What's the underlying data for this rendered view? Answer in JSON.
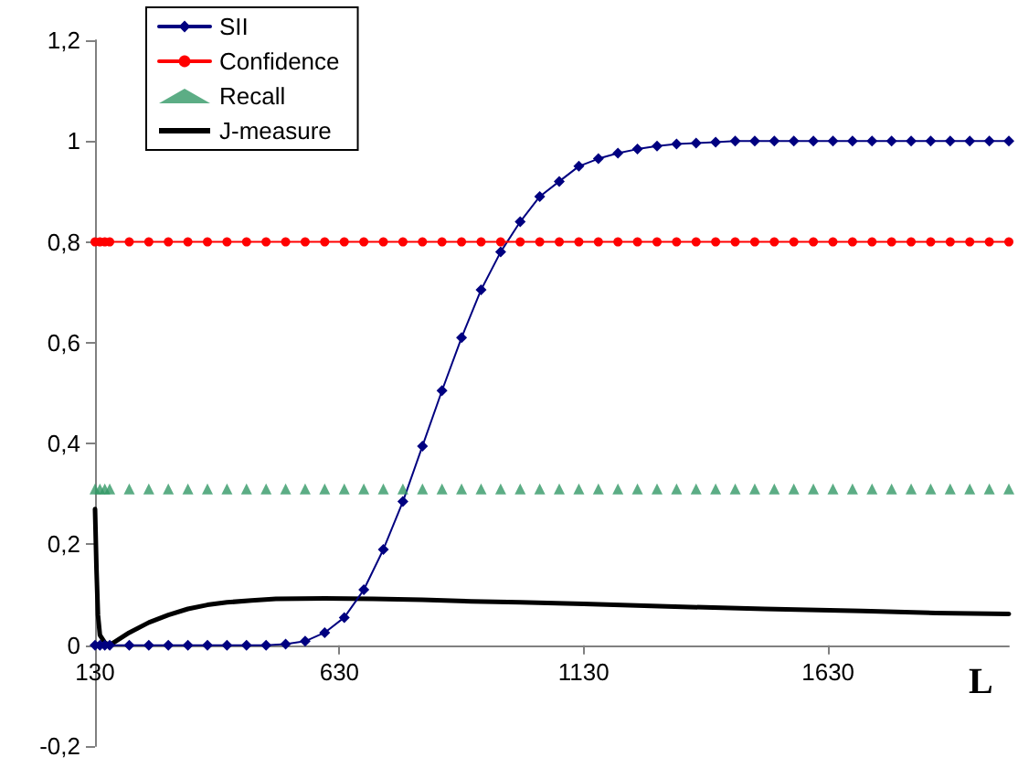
{
  "chart_data": {
    "type": "line",
    "xlabel": "L",
    "x": [
      130,
      140,
      150,
      160,
      200,
      240,
      280,
      320,
      360,
      400,
      440,
      480,
      520,
      560,
      600,
      640,
      680,
      720,
      760,
      800,
      840,
      880,
      920,
      960,
      1000,
      1040,
      1080,
      1120,
      1160,
      1200,
      1240,
      1280,
      1320,
      1360,
      1400,
      1440,
      1480,
      1520,
      1560,
      1600,
      1640,
      1680,
      1720,
      1760,
      1800,
      1840,
      1880,
      1920,
      1960,
      2000
    ],
    "series": [
      {
        "name": "SII",
        "color": "#000080",
        "marker": "diamond",
        "values": [
          0,
          0,
          0,
          0,
          0,
          0,
          0,
          0,
          0,
          0,
          0,
          0,
          0.002,
          0.008,
          0.025,
          0.055,
          0.11,
          0.19,
          0.285,
          0.395,
          0.505,
          0.61,
          0.705,
          0.78,
          0.84,
          0.89,
          0.92,
          0.95,
          0.965,
          0.976,
          0.984,
          0.99,
          0.994,
          0.996,
          0.998,
          1,
          1,
          1,
          1,
          1,
          1,
          1,
          1,
          1,
          1,
          1,
          1,
          1,
          1,
          1
        ]
      },
      {
        "name": "Confidence",
        "color": "#ff0000",
        "marker": "circle",
        "values": [
          0.8,
          0.8,
          0.8,
          0.8,
          0.8,
          0.8,
          0.8,
          0.8,
          0.8,
          0.8,
          0.8,
          0.8,
          0.8,
          0.8,
          0.8,
          0.8,
          0.8,
          0.8,
          0.8,
          0.8,
          0.8,
          0.8,
          0.8,
          0.8,
          0.8,
          0.8,
          0.8,
          0.8,
          0.8,
          0.8,
          0.8,
          0.8,
          0.8,
          0.8,
          0.8,
          0.8,
          0.8,
          0.8,
          0.8,
          0.8,
          0.8,
          0.8,
          0.8,
          0.8,
          0.8,
          0.8,
          0.8,
          0.8,
          0.8,
          0.8
        ]
      },
      {
        "name": "Recall",
        "type": "scatter",
        "color": "#339966",
        "marker": "triangle",
        "values": [
          0.31,
          0.31,
          0.31,
          0.31,
          0.31,
          0.31,
          0.31,
          0.31,
          0.31,
          0.31,
          0.31,
          0.31,
          0.31,
          0.31,
          0.31,
          0.31,
          0.31,
          0.31,
          0.31,
          0.31,
          0.31,
          0.31,
          0.31,
          0.31,
          0.31,
          0.31,
          0.31,
          0.31,
          0.31,
          0.31,
          0.31,
          0.31,
          0.31,
          0.31,
          0.31,
          0.31,
          0.31,
          0.31,
          0.31,
          0.31,
          0.31,
          0.31,
          0.31,
          0.31,
          0.31,
          0.31,
          0.31,
          0.31,
          0.31,
          0.31
        ]
      },
      {
        "name": "J-measure",
        "color": "#000000",
        "marker": "none",
        "x": [
          130,
          133,
          136,
          140,
          150,
          160,
          200,
          240,
          280,
          320,
          360,
          400,
          450,
          500,
          600,
          700,
          800,
          900,
          1000,
          1130,
          1300,
          1500,
          1700,
          1850,
          2000
        ],
        "values": [
          0.27,
          0.15,
          0.06,
          0.02,
          0.005,
          0,
          0.025,
          0.045,
          0.06,
          0.072,
          0.08,
          0.085,
          0.089,
          0.092,
          0.093,
          0.092,
          0.09,
          0.087,
          0.085,
          0.082,
          0.077,
          0.072,
          0.068,
          0.064,
          0.062
        ]
      }
    ],
    "xlim": [
      130,
      2000
    ],
    "xticks": [
      130,
      630,
      1130,
      1630
    ],
    "ylim": [
      -0.2,
      1.2
    ],
    "yticks": [
      {
        "value": -0.2,
        "label": "-0,2"
      },
      0,
      {
        "value": 0.2,
        "label": "0,2"
      },
      {
        "value": 0.4,
        "label": "0,4"
      },
      {
        "value": 0.6,
        "label": "0,6"
      },
      {
        "value": 0.8,
        "label": "0,8"
      },
      1,
      {
        "value": 1.2,
        "label": "1,2"
      }
    ],
    "legend": "top left"
  }
}
